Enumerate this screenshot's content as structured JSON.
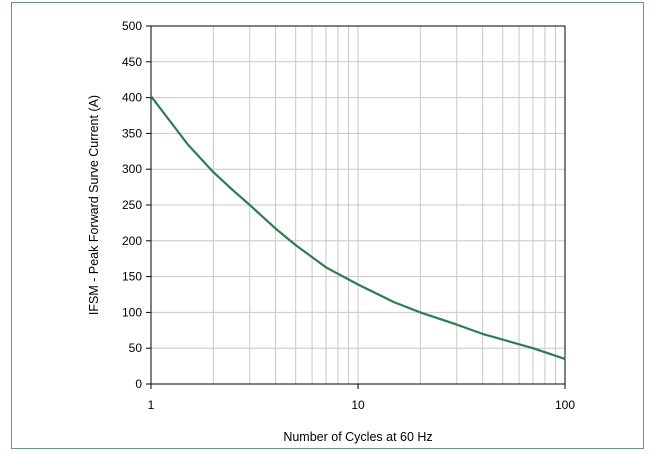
{
  "chart_data": {
    "type": "line",
    "title": "",
    "xlabel": "Number of Cycles at 60 Hz",
    "ylabel": "IFSM - Peak Forward Surve Current (A)",
    "x_scale": "log",
    "xlim": [
      1,
      100
    ],
    "ylim": [
      0,
      500
    ],
    "x_ticks": [
      1,
      10,
      100
    ],
    "x_tick_labels": [
      "1",
      "10",
      "100"
    ],
    "y_ticks": [
      0,
      50,
      100,
      150,
      200,
      250,
      300,
      350,
      400,
      450,
      500
    ],
    "y_tick_labels": [
      "0",
      "50",
      "100",
      "150",
      "200",
      "250",
      "300",
      "350",
      "400",
      "450",
      "500"
    ],
    "grid": {
      "x_minor": true,
      "y": true
    },
    "legend": "none",
    "series": [
      {
        "color": "#2e7d4f",
        "x": [
          1,
          1.5,
          2,
          2.5,
          3,
          4,
          5,
          7,
          10,
          15,
          20,
          30,
          40,
          50,
          70,
          100
        ],
        "y": [
          402,
          335,
          296,
          270,
          250,
          217,
          194,
          163,
          139,
          114,
          100,
          83,
          70,
          62,
          50,
          35
        ]
      }
    ]
  }
}
